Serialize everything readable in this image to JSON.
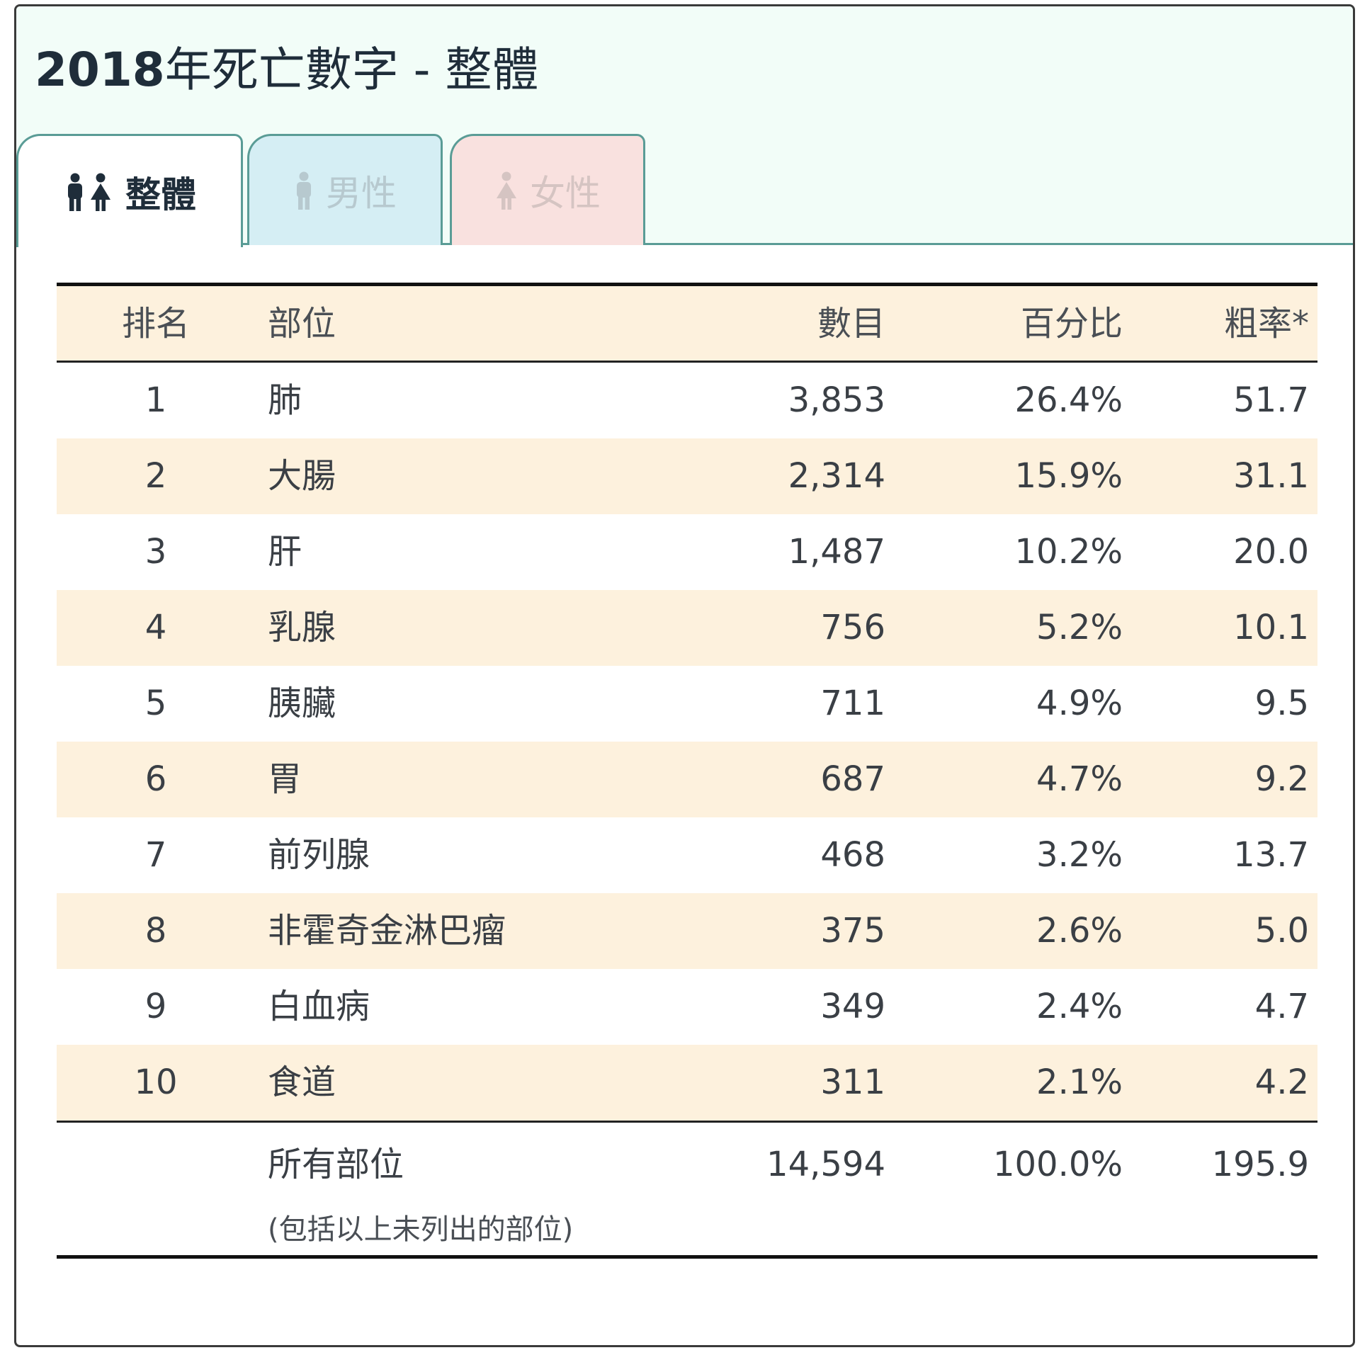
{
  "title": {
    "year": "2018",
    "rest": "年死亡數字 - 整體"
  },
  "tabs": [
    {
      "label": "整體",
      "icon": "family-icon"
    },
    {
      "label": "男性",
      "icon": "male-icon"
    },
    {
      "label": "女性",
      "icon": "female-icon"
    }
  ],
  "colors": {
    "header_bg": "#f2fdf8",
    "tab_border": "#5a9c96",
    "row_alt": "#fdf1dd",
    "male_tab": "#d5eef4",
    "female_tab": "#f9e1df"
  },
  "table": {
    "headers": {
      "rank": "排名",
      "site": "部位",
      "count": "數目",
      "pct": "百分比",
      "rate": "粗率*"
    },
    "rows": [
      {
        "rank": "1",
        "site": "肺",
        "count": "3,853",
        "pct": "26.4%",
        "rate": "51.7"
      },
      {
        "rank": "2",
        "site": "大腸",
        "count": "2,314",
        "pct": "15.9%",
        "rate": "31.1"
      },
      {
        "rank": "3",
        "site": "肝",
        "count": "1,487",
        "pct": "10.2%",
        "rate": "20.0"
      },
      {
        "rank": "4",
        "site": "乳腺",
        "count": "756",
        "pct": "5.2%",
        "rate": "10.1"
      },
      {
        "rank": "5",
        "site": "胰臟",
        "count": "711",
        "pct": "4.9%",
        "rate": "9.5"
      },
      {
        "rank": "6",
        "site": "胃",
        "count": "687",
        "pct": "4.7%",
        "rate": "9.2"
      },
      {
        "rank": "7",
        "site": "前列腺",
        "count": "468",
        "pct": "3.2%",
        "rate": "13.7"
      },
      {
        "rank": "8",
        "site": "非霍奇金淋巴瘤",
        "count": "375",
        "pct": "2.6%",
        "rate": "5.0"
      },
      {
        "rank": "9",
        "site": "白血病",
        "count": "349",
        "pct": "2.4%",
        "rate": "4.7"
      },
      {
        "rank": "10",
        "site": "食道",
        "count": "311",
        "pct": "2.1%",
        "rate": "4.2"
      }
    ],
    "total": {
      "site": "所有部位",
      "note": "(包括以上未列出的部位)",
      "count": "14,594",
      "pct": "100.0%",
      "rate": "195.9"
    }
  }
}
